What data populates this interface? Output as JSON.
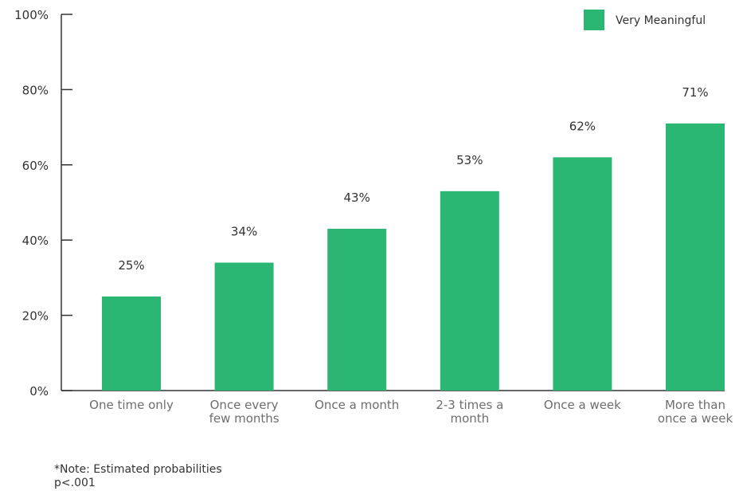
{
  "colors": {
    "bar": "#2bb673",
    "axis": "#333333"
  },
  "chart_data": {
    "type": "bar",
    "categories": [
      [
        "One time only"
      ],
      [
        "Once every",
        "few months"
      ],
      [
        "Once a month"
      ],
      [
        "2-3 times a",
        "month"
      ],
      [
        "Once a week"
      ],
      [
        "More than",
        "once a week"
      ]
    ],
    "series": [
      {
        "name": "Very Meaningful",
        "values": [
          25,
          34,
          43,
          53,
          62,
          71
        ]
      }
    ],
    "data_labels": [
      "25%",
      "34%",
      "43%",
      "53%",
      "62%",
      "71%"
    ],
    "y_ticks": [
      0,
      20,
      40,
      60,
      80,
      100
    ],
    "y_tick_labels": [
      "0%",
      "20%",
      "40%",
      "60%",
      "80%",
      "100%"
    ],
    "ylim": [
      0,
      100
    ],
    "title": "",
    "xlabel": "",
    "ylabel": "",
    "legend_position": "top-right",
    "grid": false
  },
  "note": {
    "line1": "*Note: Estimated probabilities",
    "line2": "p<.001"
  }
}
